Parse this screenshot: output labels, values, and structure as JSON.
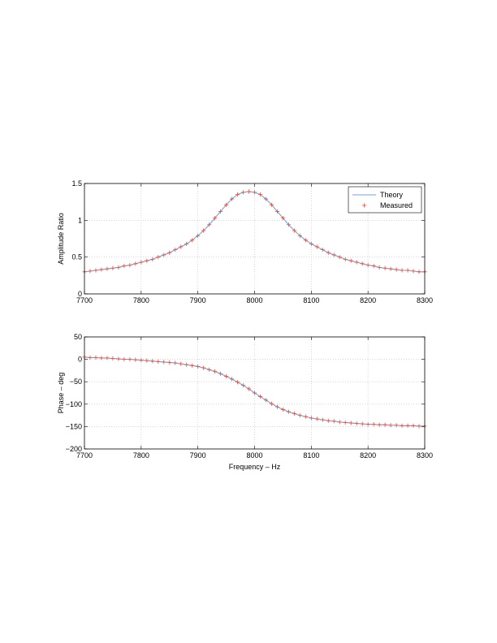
{
  "chart_data": [
    {
      "type": "line",
      "title": "",
      "xlabel": "",
      "ylabel": "Amplitude Ratio",
      "xlim": [
        7700,
        8300
      ],
      "ylim": [
        0,
        1.5
      ],
      "xticks": [
        7700,
        7800,
        7900,
        8000,
        8100,
        8200,
        8300
      ],
      "xtick_labels": [
        "7700",
        "7800",
        "7900",
        "8000",
        "8100",
        "8200",
        "8300"
      ],
      "yticks": [
        0,
        0.5,
        1,
        1.5
      ],
      "ytick_labels": [
        "0",
        "0.5",
        "1",
        "1.5"
      ],
      "grid": true,
      "legend": "top-right",
      "x": [
        7700,
        7710,
        7720,
        7730,
        7740,
        7750,
        7760,
        7770,
        7780,
        7790,
        7800,
        7810,
        7820,
        7830,
        7840,
        7850,
        7860,
        7870,
        7880,
        7890,
        7900,
        7910,
        7920,
        7930,
        7940,
        7950,
        7960,
        7970,
        7980,
        7990,
        8000,
        8010,
        8020,
        8030,
        8040,
        8050,
        8060,
        8070,
        8080,
        8090,
        8100,
        8110,
        8120,
        8130,
        8140,
        8150,
        8160,
        8170,
        8180,
        8190,
        8200,
        8210,
        8220,
        8230,
        8240,
        8250,
        8260,
        8270,
        8280,
        8290,
        8300
      ],
      "series": [
        {
          "name": "Theory",
          "style": "line",
          "color": "#7f9fd6",
          "values": [
            0.3,
            0.31,
            0.32,
            0.33,
            0.34,
            0.35,
            0.36,
            0.38,
            0.39,
            0.41,
            0.43,
            0.45,
            0.47,
            0.5,
            0.53,
            0.56,
            0.6,
            0.64,
            0.68,
            0.73,
            0.79,
            0.86,
            0.94,
            1.03,
            1.12,
            1.21,
            1.29,
            1.35,
            1.38,
            1.39,
            1.38,
            1.35,
            1.29,
            1.21,
            1.12,
            1.03,
            0.94,
            0.86,
            0.79,
            0.73,
            0.68,
            0.64,
            0.6,
            0.56,
            0.53,
            0.5,
            0.47,
            0.45,
            0.43,
            0.41,
            0.39,
            0.38,
            0.36,
            0.35,
            0.34,
            0.33,
            0.32,
            0.32,
            0.31,
            0.3,
            0.3
          ]
        },
        {
          "name": "Measured",
          "style": "marker",
          "color": "#e0503c",
          "values": [
            0.3,
            0.31,
            0.32,
            0.33,
            0.34,
            0.35,
            0.36,
            0.38,
            0.39,
            0.41,
            0.43,
            0.45,
            0.47,
            0.5,
            0.53,
            0.56,
            0.6,
            0.64,
            0.68,
            0.73,
            0.79,
            0.86,
            0.94,
            1.03,
            1.12,
            1.21,
            1.29,
            1.35,
            1.38,
            1.39,
            1.38,
            1.35,
            1.29,
            1.21,
            1.12,
            1.03,
            0.94,
            0.86,
            0.79,
            0.73,
            0.68,
            0.64,
            0.6,
            0.56,
            0.53,
            0.5,
            0.47,
            0.45,
            0.43,
            0.41,
            0.39,
            0.38,
            0.36,
            0.35,
            0.34,
            0.33,
            0.32,
            0.32,
            0.31,
            0.3,
            0.3
          ]
        }
      ]
    },
    {
      "type": "line",
      "title": "",
      "xlabel": "Frequency – Hz",
      "ylabel": "Phase – deg",
      "xlim": [
        7700,
        8300
      ],
      "ylim": [
        -200,
        50
      ],
      "xticks": [
        7700,
        7800,
        7900,
        8000,
        8100,
        8200,
        8300
      ],
      "xtick_labels": [
        "7700",
        "7800",
        "7900",
        "8000",
        "8100",
        "8200",
        "8300"
      ],
      "yticks": [
        -200,
        -150,
        -100,
        -50,
        0,
        50
      ],
      "ytick_labels": [
        "−200",
        "−150",
        "−100",
        "−50",
        "0",
        "50"
      ],
      "grid": true,
      "x": [
        7700,
        7710,
        7720,
        7730,
        7740,
        7750,
        7760,
        7770,
        7780,
        7790,
        7800,
        7810,
        7820,
        7830,
        7840,
        7850,
        7860,
        7870,
        7880,
        7890,
        7900,
        7910,
        7920,
        7930,
        7940,
        7950,
        7960,
        7970,
        7980,
        7990,
        8000,
        8010,
        8020,
        8030,
        8040,
        8050,
        8060,
        8070,
        8080,
        8090,
        8100,
        8110,
        8120,
        8130,
        8140,
        8150,
        8160,
        8170,
        8180,
        8190,
        8200,
        8210,
        8220,
        8230,
        8240,
        8250,
        8260,
        8270,
        8280,
        8290,
        8300
      ],
      "series": [
        {
          "name": "Theory",
          "style": "line",
          "color": "#7f9fd6",
          "values": [
            5,
            4,
            4,
            3,
            3,
            2,
            1,
            0,
            0,
            -1,
            -2,
            -3,
            -4,
            -5,
            -6,
            -7,
            -8,
            -10,
            -12,
            -14,
            -16,
            -19,
            -23,
            -27,
            -32,
            -38,
            -44,
            -51,
            -58,
            -66,
            -75,
            -83,
            -91,
            -99,
            -106,
            -112,
            -117,
            -121,
            -125,
            -128,
            -131,
            -133,
            -135,
            -137,
            -138,
            -140,
            -141,
            -142,
            -143,
            -144,
            -145,
            -145,
            -146,
            -146,
            -147,
            -147,
            -148,
            -148,
            -148,
            -149,
            -149
          ]
        },
        {
          "name": "Measured",
          "style": "marker",
          "color": "#e0503c",
          "values": [
            5,
            4,
            4,
            3,
            3,
            2,
            1,
            0,
            0,
            -1,
            -2,
            -3,
            -4,
            -5,
            -6,
            -7,
            -8,
            -10,
            -12,
            -14,
            -16,
            -19,
            -23,
            -27,
            -32,
            -38,
            -44,
            -51,
            -58,
            -66,
            -75,
            -83,
            -91,
            -99,
            -106,
            -112,
            -117,
            -121,
            -125,
            -128,
            -131,
            -133,
            -135,
            -137,
            -138,
            -140,
            -141,
            -142,
            -143,
            -144,
            -145,
            -145,
            -146,
            -146,
            -147,
            -147,
            -148,
            -148,
            -148,
            -149,
            -149
          ]
        }
      ]
    }
  ]
}
